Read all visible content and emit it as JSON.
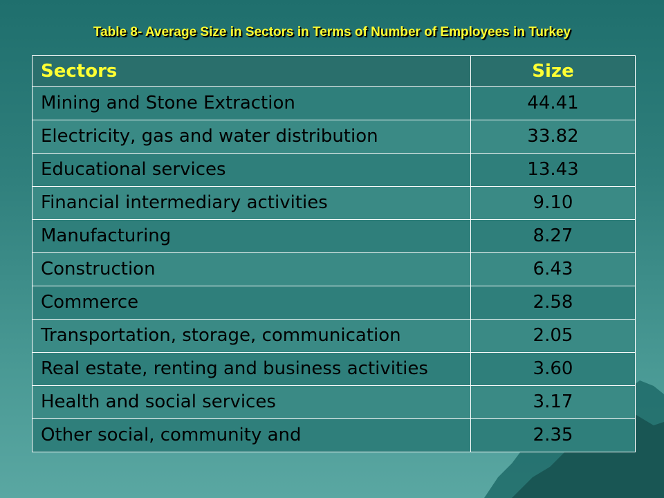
{
  "title": "Table 8- Average Size in Sectors in Terms of Number of Employees  in Turkey",
  "table": {
    "headers": [
      "Sectors",
      "Size"
    ],
    "rows": [
      [
        "Mining and Stone Extraction",
        "44.41"
      ],
      [
        "Electricity, gas and water distribution",
        "33.82"
      ],
      [
        "Educational services",
        "13.43"
      ],
      [
        "Financial intermediary activities",
        "9.10"
      ],
      [
        "Manufacturing",
        "8.27"
      ],
      [
        "Construction",
        "6.43"
      ],
      [
        "Commerce",
        "2.58"
      ],
      [
        "Transportation, storage, communication",
        "2.05"
      ],
      [
        "Real estate, renting and business activities",
        "3.60"
      ],
      [
        "Health and social services",
        "3.17"
      ],
      [
        "Other social, community and",
        "2.35"
      ]
    ]
  },
  "colors": {
    "title": "#ffff33",
    "header_bg": "#2a6f6c",
    "border": "#ffffff"
  }
}
